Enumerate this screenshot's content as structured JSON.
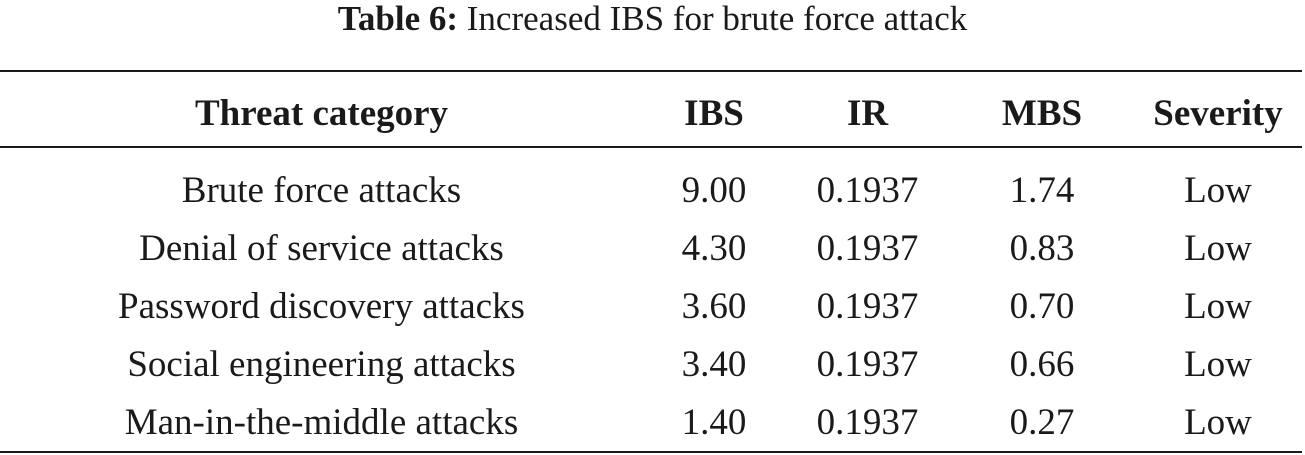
{
  "caption": {
    "label": "Table 6:",
    "text": " Increased IBS for brute force attack"
  },
  "table": {
    "headers": [
      "Threat category",
      "IBS",
      "IR",
      "MBS",
      "Severity"
    ],
    "rows": [
      [
        "Brute force attacks",
        "9.00",
        "0.1937",
        "1.74",
        "Low"
      ],
      [
        "Denial of service attacks",
        "4.30",
        "0.1937",
        "0.83",
        "Low"
      ],
      [
        "Password discovery attacks",
        "3.60",
        "0.1937",
        "0.70",
        "Low"
      ],
      [
        "Social engineering attacks",
        "3.40",
        "0.1937",
        "0.66",
        "Low"
      ],
      [
        "Man-in-the-middle attacks",
        "1.40",
        "0.1937",
        "0.27",
        "Low"
      ]
    ]
  }
}
